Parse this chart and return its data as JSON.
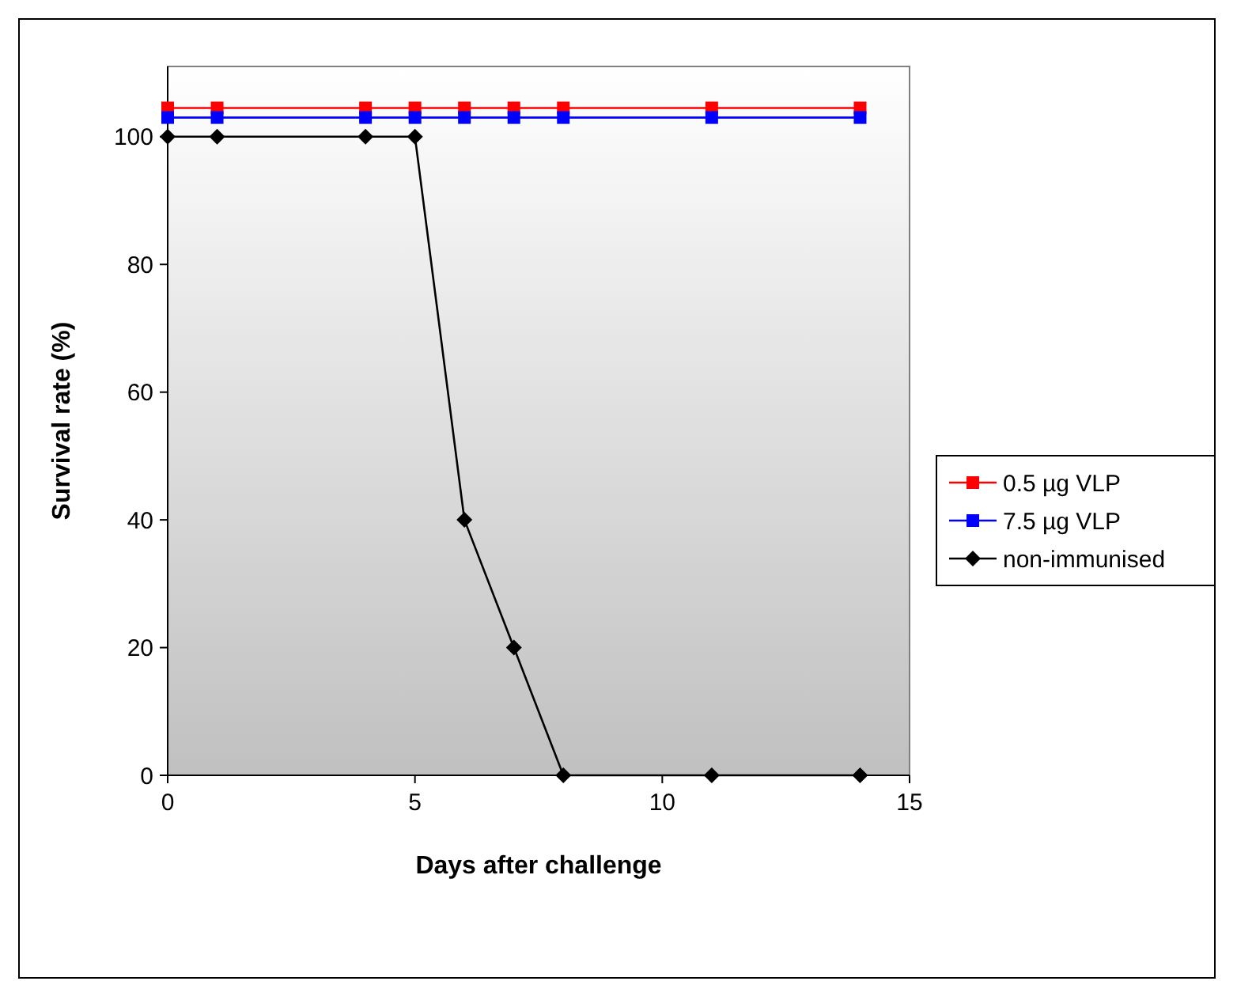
{
  "chart_data": {
    "type": "line",
    "xlabel": "Days after challenge",
    "ylabel": "Survival rate (%)",
    "x": [
      0,
      1,
      4,
      5,
      6,
      7,
      8,
      11,
      14
    ],
    "series": [
      {
        "name": "0.5 µg VLP",
        "color": "#ff0000",
        "marker": "square",
        "values": [
          104.5,
          104.5,
          104.5,
          104.5,
          104.5,
          104.5,
          104.5,
          104.5,
          104.5
        ]
      },
      {
        "name": "7.5 µg VLP",
        "color": "#0000ff",
        "marker": "square",
        "values": [
          103,
          103,
          103,
          103,
          103,
          103,
          103,
          103,
          103
        ]
      },
      {
        "name": "non-immunised",
        "color": "#000000",
        "marker": "diamond",
        "values": [
          100,
          100,
          100,
          100,
          40,
          20,
          0,
          0,
          0
        ]
      }
    ],
    "xlim": [
      0,
      15
    ],
    "xticks": [
      0,
      5,
      10,
      15
    ],
    "ylim": [
      0,
      111
    ],
    "yticks": [
      0,
      20,
      40,
      60,
      80,
      100
    ],
    "grid": false,
    "legend": "right",
    "line_style": "solid"
  }
}
